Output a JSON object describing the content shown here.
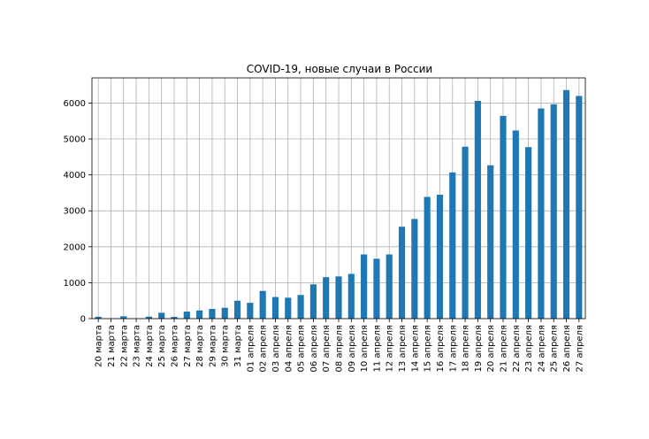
{
  "chart_data": {
    "type": "bar",
    "title": "COVID-19, новые случаи в России",
    "xlabel": "",
    "ylabel": "",
    "ylim": [
      0,
      6700
    ],
    "yticks": [
      0,
      1000,
      2000,
      3000,
      4000,
      5000,
      6000
    ],
    "grid": true,
    "bar_color": "#1f77b4",
    "categories": [
      "20 марта",
      "21 марта",
      "22 марта",
      "23 марта",
      "24 марта",
      "25 марта",
      "26 марта",
      "27 марта",
      "28 марта",
      "29 марта",
      "30 марта",
      "31 марта",
      "01 апреля",
      "02 апреля",
      "03 апреля",
      "04 апреля",
      "05 апреля",
      "06 апреля",
      "07 апреля",
      "08 апреля",
      "09 апреля",
      "10 апреля",
      "11 апреля",
      "12 апреля",
      "13 апреля",
      "14 апреля",
      "15 апреля",
      "16 апреля",
      "17 апреля",
      "18 апреля",
      "19 апреля",
      "20 апреля",
      "21 апреля",
      "22 апреля",
      "23 апреля",
      "24 апреля",
      "25 апреля",
      "26 апреля",
      "27 апреля"
    ],
    "values": [
      53,
      0,
      65,
      0,
      57,
      163,
      50,
      196,
      228,
      270,
      302,
      500,
      440,
      771,
      601,
      582,
      658,
      954,
      1154,
      1175,
      1245,
      1786,
      1667,
      1786,
      2558,
      2774,
      3388,
      3448,
      4070,
      4785,
      6060,
      4268,
      5642,
      5236,
      4774,
      5849,
      5966,
      6361,
      6198
    ]
  }
}
